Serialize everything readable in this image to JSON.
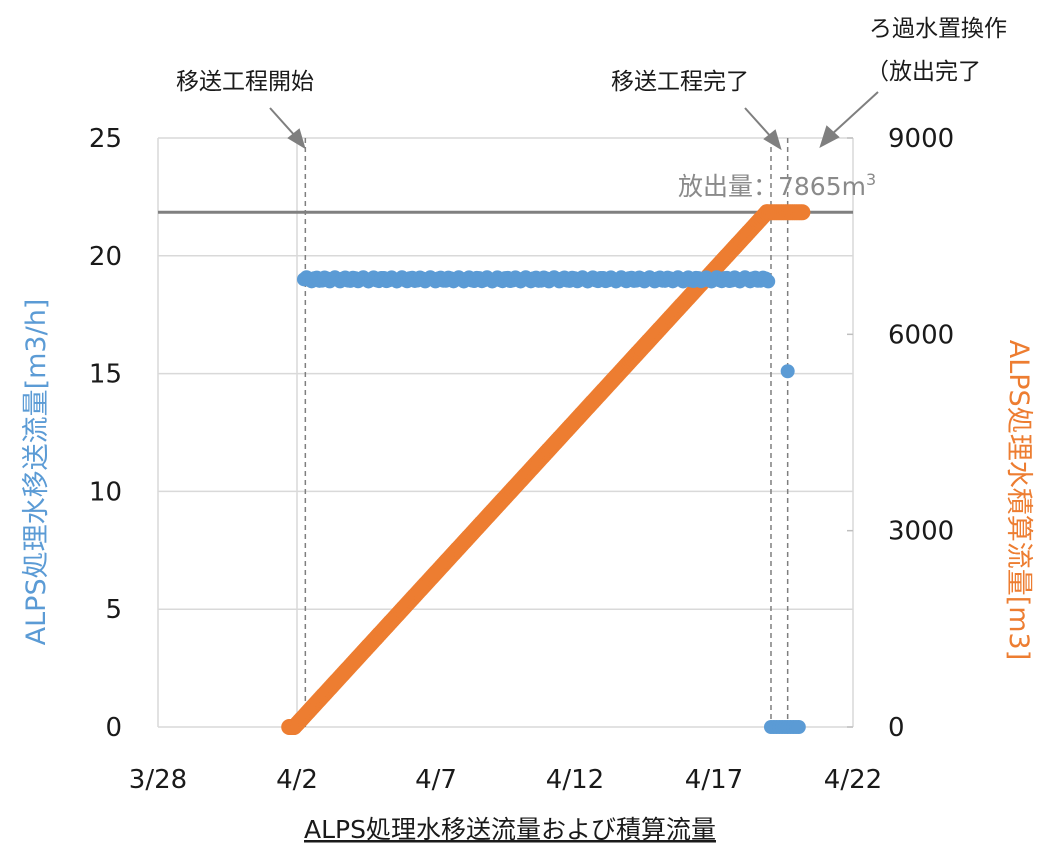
{
  "chart_data": {
    "type": "scatter",
    "title": "ALPS処理水移送流量および積算流量",
    "x_ticks": [
      "3/28",
      "4/2",
      "4/7",
      "4/12",
      "4/17",
      "4/22"
    ],
    "y_left": {
      "label": "ALPS処理水移送流量[m3/h]",
      "ticks": [
        "0",
        "5",
        "10",
        "15",
        "20",
        "25"
      ],
      "range": [
        0,
        25
      ]
    },
    "y_right": {
      "label": "ALPS処理水積算流量[m3]",
      "ticks": [
        "0",
        "3000",
        "6000",
        "9000"
      ],
      "range": [
        0,
        9000
      ]
    },
    "x_range_days_label": [
      "3/28",
      "4/22"
    ],
    "grid": "horizontal",
    "series": [
      {
        "axis": "left",
        "color": "#5b9bd5",
        "points": [
          {
            "x": "4/2",
            "y": 19.0
          },
          {
            "x": "4/19",
            "y": 19.0
          },
          {
            "x": "4/20",
            "y": 15.1
          },
          {
            "x": "4/19",
            "y": 0
          },
          {
            "x": "4/20",
            "y": 0
          }
        ]
      },
      {
        "axis": "right",
        "color": "#ed7d31",
        "points": [
          {
            "x": "4/2",
            "y": 0
          },
          {
            "x": "4/19",
            "y": 7865
          },
          {
            "x": "4/20",
            "y": 7865
          }
        ]
      }
    ],
    "reference_line": {
      "axis": "right",
      "y": 7865,
      "color": "#808080"
    },
    "annotations": [
      {
        "text": "移送工程開始",
        "x": "4/2"
      },
      {
        "text": "移送工程完了",
        "x": "4/19"
      },
      {
        "text_line1": "ろ過水置換作",
        "text_line2": "（放出完了",
        "x": "4/20"
      }
    ],
    "release_label": {
      "prefix": "放出量：7865m",
      "superscript": "3"
    }
  }
}
